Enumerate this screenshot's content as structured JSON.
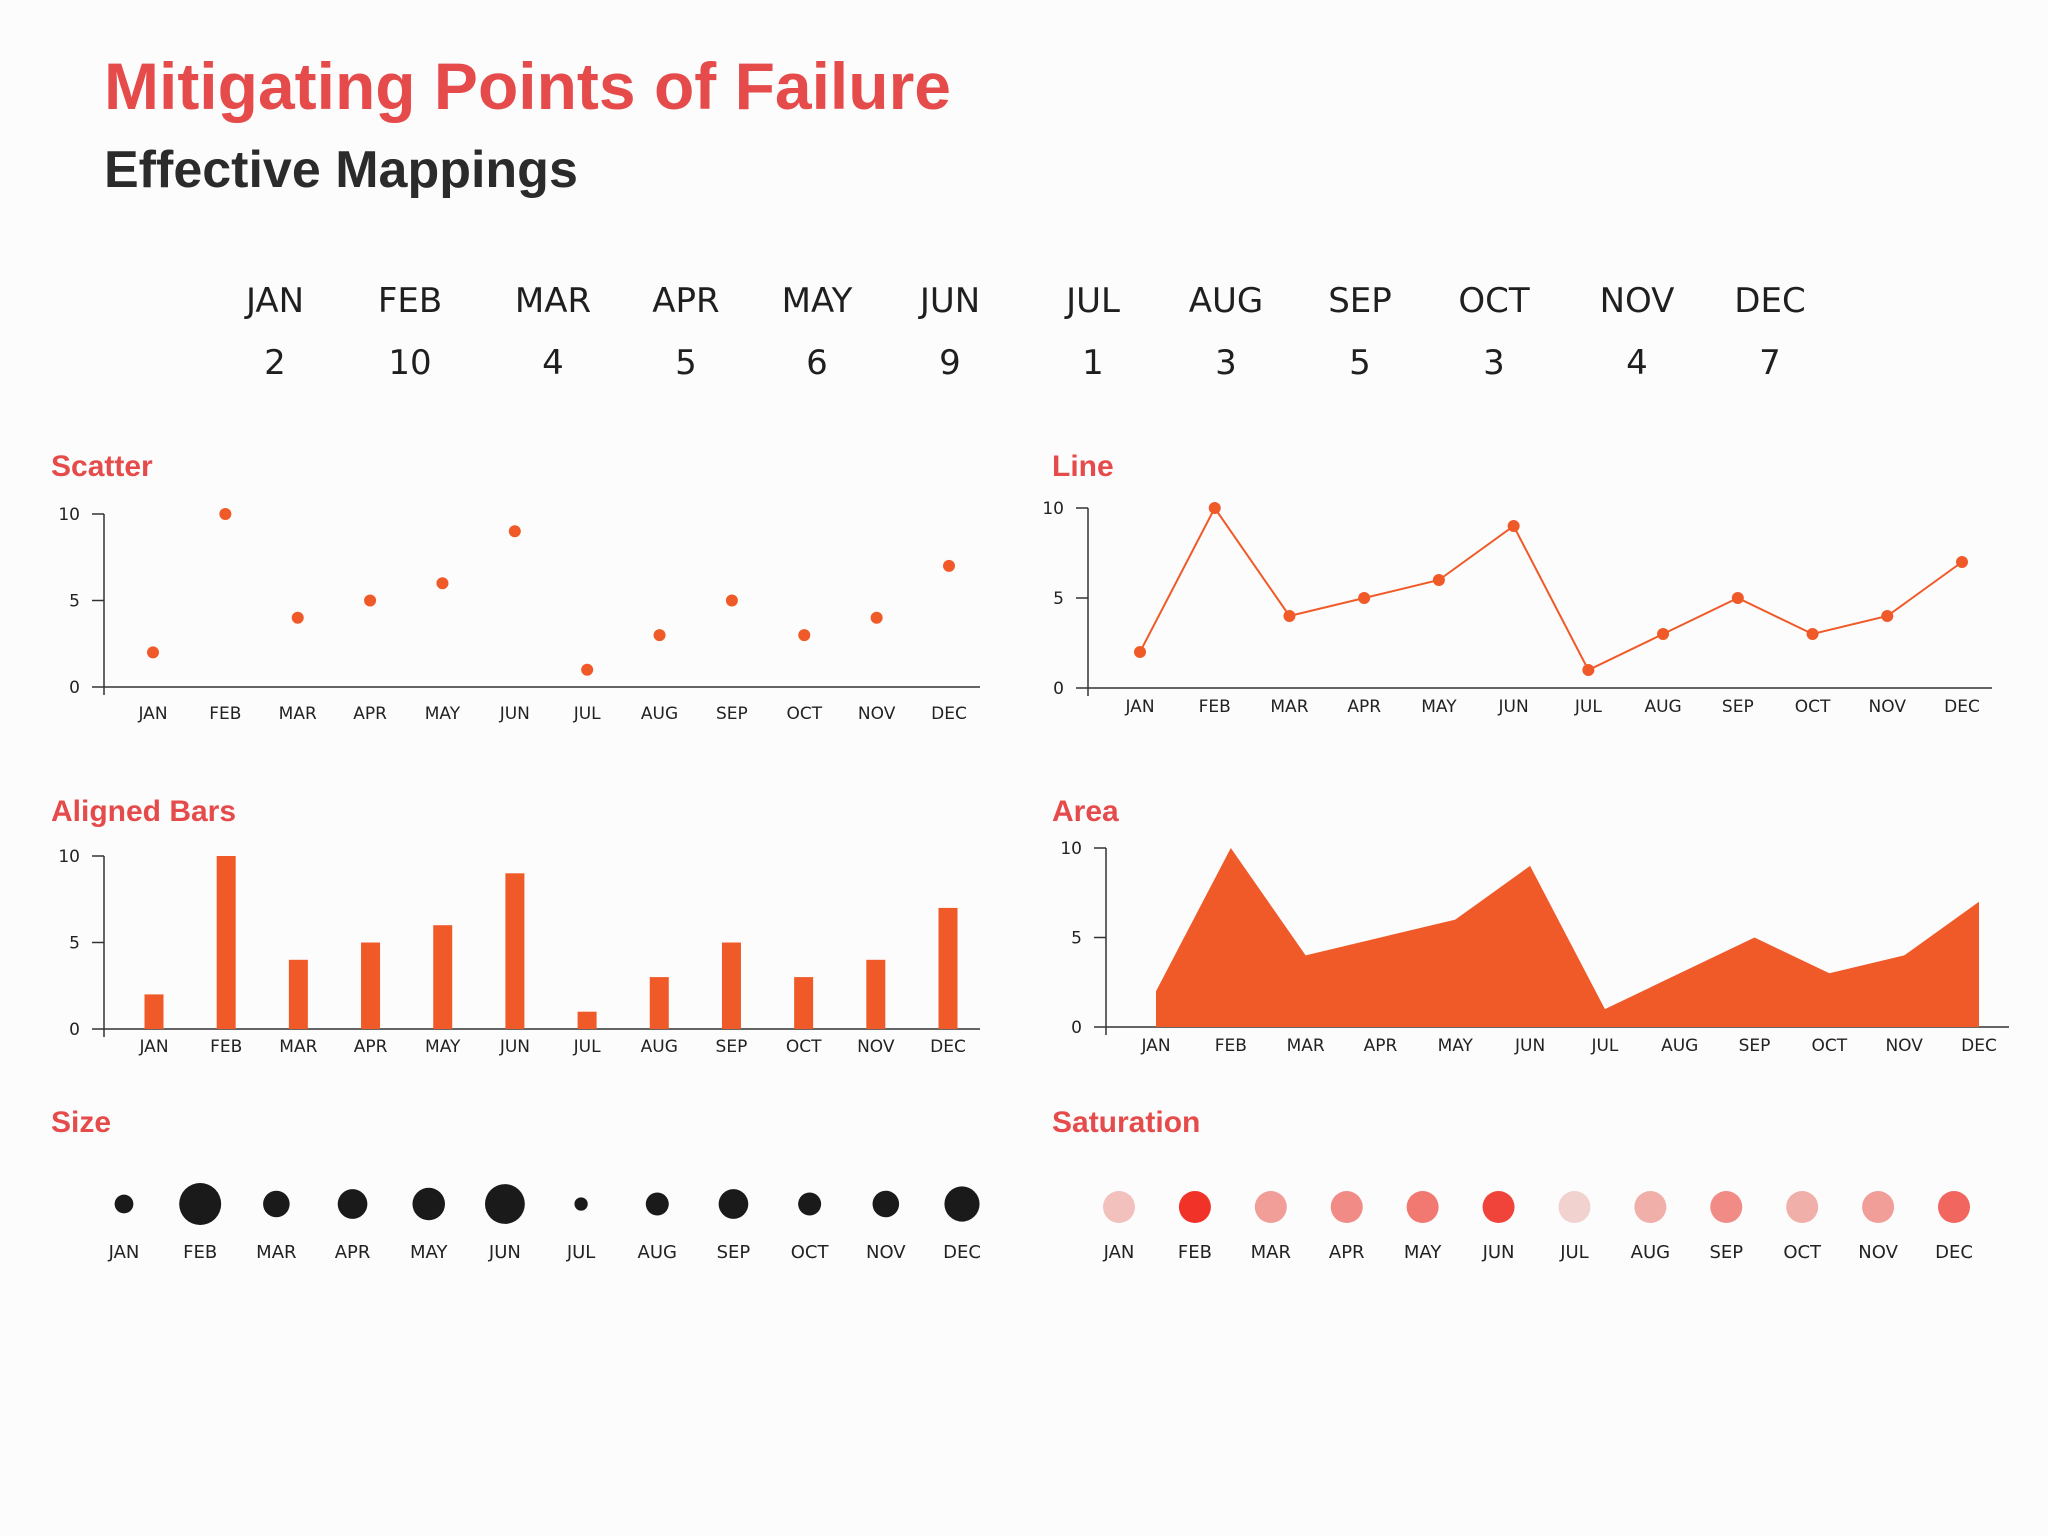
{
  "title": "Mitigating Points of Failure",
  "subtitle": "Effective Mappings",
  "months": [
    "JAN",
    "FEB",
    "MAR",
    "APR",
    "MAY",
    "JUN",
    "JUL",
    "AUG",
    "SEP",
    "OCT",
    "NOV",
    "DEC"
  ],
  "values": [
    2,
    10,
    4,
    5,
    6,
    9,
    1,
    3,
    5,
    3,
    4,
    7
  ],
  "colors": {
    "accent": "#f05a28",
    "title": "#e64b4b",
    "size_dot": "#1a1a1a",
    "axis": "#333333"
  },
  "chart_data": [
    {
      "type": "scatter",
      "title": "Scatter",
      "categories": [
        "JAN",
        "FEB",
        "MAR",
        "APR",
        "MAY",
        "JUN",
        "JUL",
        "AUG",
        "SEP",
        "OCT",
        "NOV",
        "DEC"
      ],
      "values": [
        2,
        10,
        4,
        5,
        6,
        9,
        1,
        3,
        5,
        3,
        4,
        7
      ],
      "ylim": [
        0,
        10
      ],
      "yticks": [
        0,
        5,
        10
      ]
    },
    {
      "type": "line",
      "title": "Line",
      "categories": [
        "JAN",
        "FEB",
        "MAR",
        "APR",
        "MAY",
        "JUN",
        "JUL",
        "AUG",
        "SEP",
        "OCT",
        "NOV",
        "DEC"
      ],
      "values": [
        2,
        10,
        4,
        5,
        6,
        9,
        1,
        3,
        5,
        3,
        4,
        7
      ],
      "ylim": [
        0,
        10
      ],
      "yticks": [
        0,
        5,
        10
      ]
    },
    {
      "type": "bar",
      "title": "Aligned Bars",
      "categories": [
        "JAN",
        "FEB",
        "MAR",
        "APR",
        "MAY",
        "JUN",
        "JUL",
        "AUG",
        "SEP",
        "OCT",
        "NOV",
        "DEC"
      ],
      "values": [
        2,
        10,
        4,
        5,
        6,
        9,
        1,
        3,
        5,
        3,
        4,
        7
      ],
      "ylim": [
        0,
        10
      ],
      "yticks": [
        0,
        5,
        10
      ]
    },
    {
      "type": "area",
      "title": "Area",
      "categories": [
        "JAN",
        "FEB",
        "MAR",
        "APR",
        "MAY",
        "JUN",
        "JUL",
        "AUG",
        "SEP",
        "OCT",
        "NOV",
        "DEC"
      ],
      "values": [
        2,
        10,
        4,
        5,
        6,
        9,
        1,
        3,
        5,
        3,
        4,
        7
      ],
      "ylim": [
        0,
        10
      ],
      "yticks": [
        0,
        5,
        10
      ]
    },
    {
      "type": "scatter",
      "encoding": "size",
      "title": "Size",
      "categories": [
        "JAN",
        "FEB",
        "MAR",
        "APR",
        "MAY",
        "JUN",
        "JUL",
        "AUG",
        "SEP",
        "OCT",
        "NOV",
        "DEC"
      ],
      "values": [
        2,
        10,
        4,
        5,
        6,
        9,
        1,
        3,
        5,
        3,
        4,
        7
      ]
    },
    {
      "type": "scatter",
      "encoding": "saturation",
      "title": "Saturation",
      "categories": [
        "JAN",
        "FEB",
        "MAR",
        "APR",
        "MAY",
        "JUN",
        "JUL",
        "AUG",
        "SEP",
        "OCT",
        "NOV",
        "DEC"
      ],
      "values": [
        2,
        10,
        4,
        5,
        6,
        9,
        1,
        3,
        5,
        3,
        4,
        7
      ]
    }
  ]
}
